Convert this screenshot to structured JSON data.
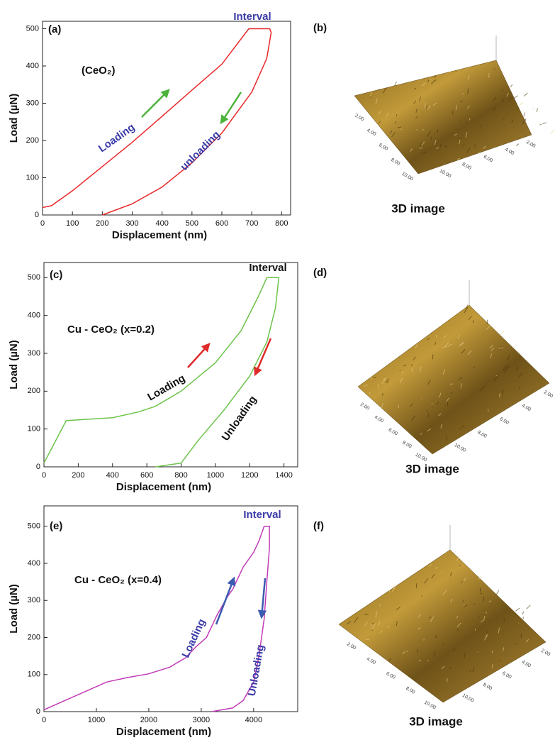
{
  "chart_data": [
    {
      "type": "line",
      "xlabel": "Displacement (nm)",
      "ylabel": "Load (µN)",
      "color": "#e8282a",
      "arrow_color": "#4bb33a",
      "xlim": [
        0,
        830
      ],
      "xticks": [
        0,
        100,
        200,
        300,
        400,
        500,
        600,
        700,
        800
      ],
      "ylim": [
        0,
        520
      ],
      "yticks": [
        0,
        100,
        200,
        300,
        400,
        500
      ],
      "x": [
        0,
        30,
        100,
        200,
        300,
        400,
        500,
        600,
        690,
        760,
        765,
        750,
        700,
        600,
        500,
        400,
        300,
        200
      ],
      "values": [
        20,
        25,
        65,
        130,
        195,
        265,
        335,
        405,
        500,
        500,
        490,
        420,
        330,
        220,
        140,
        75,
        30,
        0
      ],
      "annotations": [
        {
          "text": "(a)",
          "color": "#111"
        },
        {
          "text": "Interval",
          "color": "#3b3ba8"
        },
        {
          "text": "(CeO₂)",
          "color": "#111"
        },
        {
          "text": "Loading",
          "color": "#3b3ba8"
        },
        {
          "text": "unloading",
          "color": "#3b3ba8"
        }
      ]
    },
    {
      "type": "line",
      "xlabel": "Displacement (nm)",
      "ylabel": "Load (µN)",
      "color": "#6cc34a",
      "arrow_color": "#e02a2a",
      "xlim": [
        0,
        1480
      ],
      "xticks": [
        0,
        200,
        400,
        600,
        800,
        1000,
        1200,
        1400
      ],
      "ylim": [
        0,
        540
      ],
      "yticks": [
        0,
        100,
        200,
        300,
        400,
        500
      ],
      "x": [
        0,
        130,
        400,
        550,
        650,
        800,
        1000,
        1150,
        1250,
        1300,
        1370,
        1350,
        1300,
        1200,
        1050,
        900,
        800,
        650
      ],
      "values": [
        10,
        122,
        130,
        145,
        160,
        200,
        275,
        360,
        450,
        500,
        500,
        420,
        330,
        240,
        150,
        70,
        10,
        0
      ],
      "annotations": [
        {
          "text": "(c)",
          "color": "#111"
        },
        {
          "text": "Interval",
          "color": "#111"
        },
        {
          "text": "Cu - CeO₂ (x=0.2)",
          "color": "#111"
        },
        {
          "text": "Loading",
          "color": "#111"
        },
        {
          "text": "Unloading",
          "color": "#111"
        }
      ]
    },
    {
      "type": "line",
      "xlabel": "Displacement (nm)",
      "ylabel": "Load (µN)",
      "color": "#c23bb8",
      "arrow_color": "#3b5bb0",
      "xlim": [
        0,
        4840
      ],
      "xticks": [
        0,
        1000,
        2000,
        3000,
        4000
      ],
      "ylim": [
        0,
        555
      ],
      "yticks": [
        0,
        100,
        200,
        300,
        400,
        500
      ],
      "x": [
        0,
        400,
        800,
        1200,
        1600,
        2000,
        2400,
        2700,
        2900,
        3100,
        3300,
        3500,
        3600,
        3800,
        4000,
        4100,
        4200,
        4300,
        4300,
        4250,
        4200,
        4100,
        4000,
        3800,
        3600,
        3200
      ],
      "values": [
        5,
        30,
        55,
        80,
        92,
        102,
        120,
        145,
        175,
        200,
        260,
        310,
        330,
        390,
        430,
        460,
        500,
        500,
        440,
        350,
        250,
        150,
        80,
        30,
        10,
        0
      ],
      "annotations": [
        {
          "text": "(e)",
          "color": "#111"
        },
        {
          "text": "Interval",
          "color": "#3b3ba8"
        },
        {
          "text": "Cu - CeO₂ (x=0.4)",
          "color": "#111"
        },
        {
          "text": "Loading",
          "color": "#3b3ba8"
        },
        {
          "text": "Unloading",
          "color": "#3b3ba8"
        }
      ]
    }
  ],
  "images": [
    {
      "label": "(b)",
      "caption": "3D image",
      "left_edge_ticks": [
        "2.00",
        "4.00",
        "6.00",
        "8.00",
        "10.00"
      ],
      "right_edge_ticks": [
        "10.00",
        "8.00",
        "6.00",
        "4.00",
        "2.00"
      ]
    },
    {
      "label": "(d)",
      "caption": "3D image",
      "left_edge_ticks": [
        "2.00",
        "4.00",
        "6.00",
        "8.00",
        "10.00"
      ],
      "right_edge_ticks": [
        "10.00",
        "8.00",
        "6.00",
        "4.00",
        "2.00"
      ]
    },
    {
      "label": "(f)",
      "caption": "3D image",
      "left_edge_ticks": [
        "2.00",
        "4.00",
        "6.00",
        "8.00",
        "10.00"
      ],
      "right_edge_ticks": [
        "10.00",
        "8.00",
        "6.00",
        "4.00",
        "2.00"
      ]
    }
  ]
}
